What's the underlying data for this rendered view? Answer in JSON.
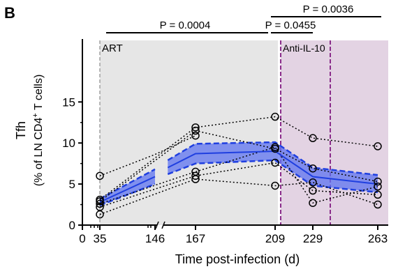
{
  "panel_label": "B",
  "chart_data": {
    "type": "line",
    "ylabel_main": "Tfh",
    "ylabel_sub_pre": "(% of LN CD4",
    "ylabel_sup": "+",
    "ylabel_sub_post": " T cells)",
    "xlabel": "Time post-infection (d)",
    "ylim": [
      0,
      15
    ],
    "y_ticks": [
      "0",
      "5",
      "10",
      "15"
    ],
    "x_tick_labels": [
      "0",
      "35",
      "146",
      "167",
      "209",
      "229",
      "263"
    ],
    "art_label": "ART",
    "anti_il10_label": "Anti-IL-10",
    "p_values": [
      {
        "label": "P = 0.0004",
        "from": 35,
        "to": 209
      },
      {
        "label": "P = 0.0455",
        "from": 209,
        "to": 229
      },
      {
        "label": "P = 0.0036",
        "from": 209,
        "to": 263
      }
    ],
    "mean_series": [
      {
        "x": 35,
        "y": 2.8
      },
      {
        "x": 146,
        "y": 5.9
      },
      {
        "x": 152,
        "y": 7.0
      },
      {
        "x": 167,
        "y": 8.7
      },
      {
        "x": 209,
        "y": 9.0
      },
      {
        "x": 229,
        "y": 5.9
      },
      {
        "x": 263,
        "y": 5.0
      }
    ],
    "band_upper": [
      {
        "x": 35,
        "y": 3.2
      },
      {
        "x": 146,
        "y": 6.8
      },
      {
        "x": 152,
        "y": 7.9
      },
      {
        "x": 167,
        "y": 9.9
      },
      {
        "x": 209,
        "y": 10.1
      },
      {
        "x": 229,
        "y": 7.0
      },
      {
        "x": 263,
        "y": 6.1
      }
    ],
    "band_lower": [
      {
        "x": 35,
        "y": 2.4
      },
      {
        "x": 146,
        "y": 5.0
      },
      {
        "x": 152,
        "y": 6.2
      },
      {
        "x": 167,
        "y": 7.5
      },
      {
        "x": 209,
        "y": 7.9
      },
      {
        "x": 229,
        "y": 4.8
      },
      {
        "x": 263,
        "y": 4.0
      }
    ],
    "individuals": [
      {
        "points": [
          {
            "x": 35,
            "y": 6.0
          },
          {
            "x": 146,
            "y": 8.6
          },
          {
            "x": 167,
            "y": 10.9
          }
        ]
      },
      {
        "points": [
          {
            "x": 35,
            "y": 3.1
          },
          {
            "x": 167,
            "y": 11.9
          },
          {
            "x": 209,
            "y": 13.2
          },
          {
            "x": 229,
            "y": 10.6
          },
          {
            "x": 263,
            "y": 9.6
          }
        ]
      },
      {
        "points": [
          {
            "x": 35,
            "y": 2.9
          },
          {
            "x": 167,
            "y": 11.5
          },
          {
            "x": 209,
            "y": 9.3
          },
          {
            "x": 229,
            "y": 6.9
          },
          {
            "x": 263,
            "y": 5.3
          }
        ]
      },
      {
        "points": [
          {
            "x": 35,
            "y": 2.6
          },
          {
            "x": 167,
            "y": 6.5
          },
          {
            "x": 209,
            "y": 9.5
          },
          {
            "x": 229,
            "y": 2.7
          },
          {
            "x": 263,
            "y": 4.7
          }
        ]
      },
      {
        "points": [
          {
            "x": 35,
            "y": 2.2
          },
          {
            "x": 167,
            "y": 6.0
          },
          {
            "x": 209,
            "y": 7.6
          },
          {
            "x": 229,
            "y": 4.2
          },
          {
            "x": 263,
            "y": 3.7
          }
        ]
      },
      {
        "points": [
          {
            "x": 35,
            "y": 1.3
          },
          {
            "x": 167,
            "y": 5.6
          },
          {
            "x": 209,
            "y": 4.8
          },
          {
            "x": 229,
            "y": 5.2
          },
          {
            "x": 263,
            "y": 2.5
          }
        ]
      }
    ],
    "colors": {
      "mean_line": "#1f3fe0",
      "band_fill": "#5d73f0",
      "art_shade": "#e6e6e6",
      "il10_shade": "#e3d3e3",
      "il10_line": "#8a2c8a",
      "il10_text": "#8a2c8a",
      "art_line": "#a0a0a0",
      "axis": "#000000"
    }
  }
}
